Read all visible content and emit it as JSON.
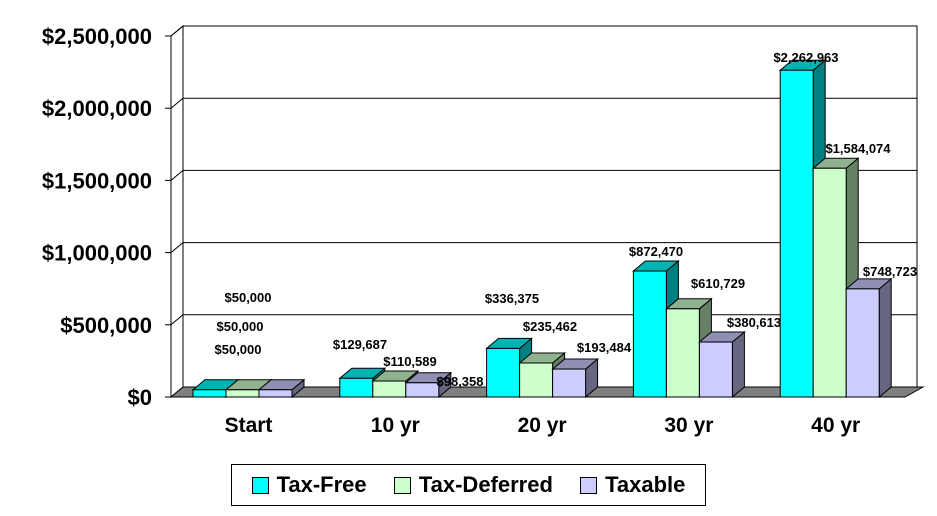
{
  "chart_data": {
    "type": "bar",
    "categories": [
      "Start",
      "10 yr",
      "20 yr",
      "30 yr",
      "40 yr"
    ],
    "series": [
      {
        "name": "Tax-Free",
        "values": [
          50000,
          129687,
          336375,
          872470,
          2262963
        ],
        "labels": [
          "$50,000",
          "$129,687",
          "$336,375",
          "$872,470",
          "$2,262,963"
        ],
        "color": "#00ffff"
      },
      {
        "name": "Tax-Deferred",
        "values": [
          50000,
          110589,
          235462,
          610729,
          1584074
        ],
        "labels": [
          "$50,000",
          "$110,589",
          "$235,462",
          "$610,729",
          "$1,584,074"
        ],
        "color": "#ccffcc"
      },
      {
        "name": "Taxable",
        "values": [
          50000,
          98358,
          193484,
          380613,
          748723
        ],
        "labels": [
          "$50,000",
          "$98,358",
          "$193,484",
          "$380,613",
          "$748,723"
        ],
        "color": "#ccccff"
      }
    ],
    "yticks": [
      0,
      500000,
      1000000,
      1500000,
      2000000,
      2500000
    ],
    "ytick_labels": [
      "$0",
      "$500,000",
      "$1,000,000",
      "$1,500,000",
      "$2,000,000",
      "$2,500,000"
    ],
    "ylim": [
      0,
      2500000
    ],
    "grid": true,
    "legend": "bottom-center",
    "floor_color": "#808080"
  }
}
